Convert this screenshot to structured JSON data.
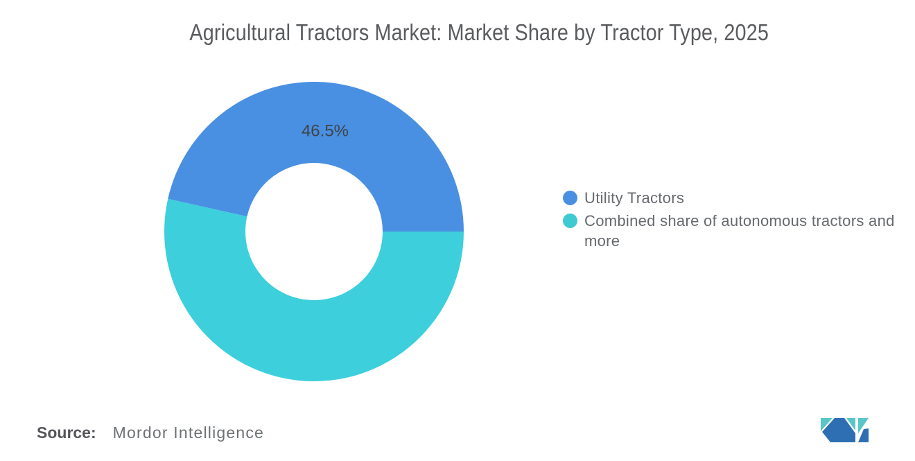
{
  "chart_data": {
    "type": "pie",
    "donut": true,
    "title": "Agricultural Tractors Market: Market Share by Tractor Type, 2025",
    "unit": "%",
    "series": [
      {
        "name": "Utility Tractors",
        "value": 46.5,
        "label": "46.5%",
        "color": "#4A90E2",
        "show_label": true
      },
      {
        "name": "Combined share of autonomous tractors and more",
        "value": 53.5,
        "color": "#3DCFDC",
        "show_label": false
      }
    ],
    "start_angle_deg": -77.4,
    "inner_radius_ratio": 0.458,
    "grid": false,
    "legend_position": "right-middle"
  },
  "legend": {
    "items": [
      {
        "label": "Utility Tractors",
        "color": "#4A90E2"
      },
      {
        "label": "Combined share of autonomous tractors and more",
        "color": "#3FC9D1"
      }
    ]
  },
  "source": {
    "label": "Source:",
    "value": "Mordor Intelligence"
  },
  "colors": {
    "data_label": "#3f4347",
    "title_text": "#595b5e",
    "legend_text": "#66696d",
    "logo_blue": "#2e6fb3",
    "logo_teal": "#5ac6c9"
  }
}
